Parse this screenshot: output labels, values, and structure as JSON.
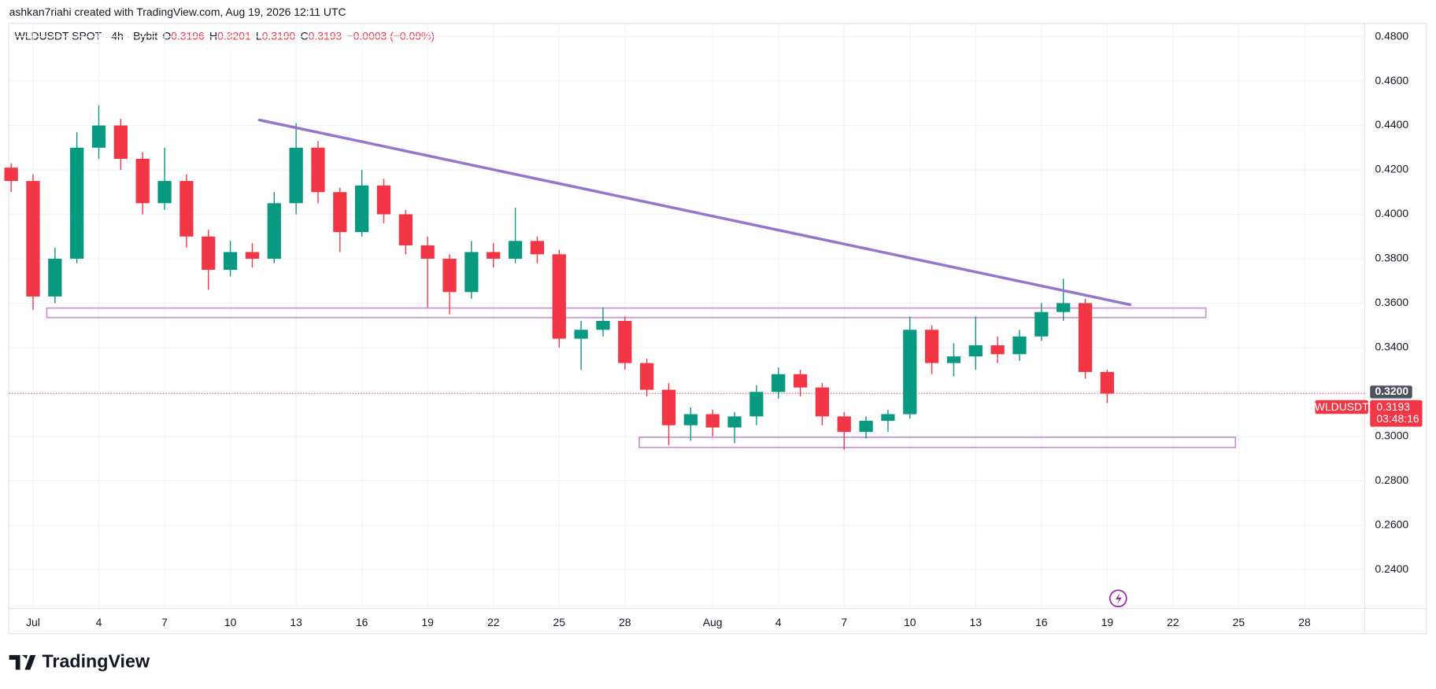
{
  "chart_data": {
    "type": "candlestick",
    "header": "ashkan7riahi created with TradingView.com, Aug 19, 2026 12:11 UTC",
    "legend": {
      "symbol": "WLDUSDT SPOT · 4h · Bybit",
      "o_label": "O",
      "o": "0.3196",
      "h_label": "H",
      "h": "0.3201",
      "l_label": "L",
      "l": "0.3190",
      "c_label": "C",
      "c": "0.3193",
      "change": "−0.0003 (−0.09%)"
    },
    "brand": "TradingView",
    "up_color": "#089981",
    "down_color": "#f23645",
    "x": [
      -1,
      0,
      1,
      2,
      3,
      4,
      5,
      6,
      7,
      8,
      9,
      10,
      11,
      12,
      13,
      14,
      15,
      16,
      17,
      18,
      19,
      20,
      21,
      22,
      23,
      24,
      25,
      26,
      27,
      28,
      29,
      30,
      31,
      32,
      33,
      34,
      35,
      36,
      37,
      38,
      39,
      40,
      41,
      42,
      43,
      44,
      45,
      46,
      47,
      48,
      49
    ],
    "open": [
      0.421,
      0.415,
      0.363,
      0.38,
      0.43,
      0.44,
      0.425,
      0.405,
      0.415,
      0.39,
      0.375,
      0.383,
      0.38,
      0.405,
      0.43,
      0.41,
      0.392,
      0.413,
      0.4,
      0.386,
      0.38,
      0.365,
      0.383,
      0.38,
      0.388,
      0.382,
      0.344,
      0.348,
      0.352,
      0.333,
      0.321,
      0.305,
      0.31,
      0.304,
      0.309,
      0.32,
      0.328,
      0.322,
      0.309,
      0.302,
      0.307,
      0.31,
      0.348,
      0.333,
      0.336,
      0.341,
      0.337,
      0.345,
      0.356,
      0.36,
      0.329
    ],
    "high": [
      0.423,
      0.418,
      0.385,
      0.437,
      0.449,
      0.443,
      0.428,
      0.43,
      0.418,
      0.393,
      0.388,
      0.387,
      0.41,
      0.441,
      0.433,
      0.412,
      0.42,
      0.416,
      0.402,
      0.39,
      0.382,
      0.388,
      0.387,
      0.403,
      0.39,
      0.384,
      0.352,
      0.358,
      0.354,
      0.335,
      0.324,
      0.313,
      0.312,
      0.311,
      0.323,
      0.331,
      0.33,
      0.324,
      0.311,
      0.309,
      0.312,
      0.354,
      0.35,
      0.342,
      0.354,
      0.345,
      0.348,
      0.36,
      0.371,
      0.362,
      0.33
    ],
    "low": [
      0.41,
      0.357,
      0.36,
      0.378,
      0.425,
      0.42,
      0.4,
      0.402,
      0.385,
      0.366,
      0.372,
      0.376,
      0.378,
      0.4,
      0.405,
      0.383,
      0.39,
      0.396,
      0.382,
      0.358,
      0.355,
      0.362,
      0.376,
      0.378,
      0.378,
      0.34,
      0.33,
      0.345,
      0.33,
      0.318,
      0.296,
      0.298,
      0.3,
      0.297,
      0.305,
      0.317,
      0.318,
      0.305,
      0.294,
      0.299,
      0.302,
      0.308,
      0.328,
      0.327,
      0.33,
      0.333,
      0.334,
      0.343,
      0.352,
      0.326,
      0.315
    ],
    "close": [
      0.415,
      0.363,
      0.38,
      0.43,
      0.44,
      0.425,
      0.405,
      0.415,
      0.39,
      0.375,
      0.383,
      0.38,
      0.405,
      0.43,
      0.41,
      0.392,
      0.413,
      0.4,
      0.386,
      0.38,
      0.365,
      0.383,
      0.38,
      0.388,
      0.382,
      0.344,
      0.348,
      0.352,
      0.333,
      0.321,
      0.305,
      0.31,
      0.304,
      0.309,
      0.32,
      0.328,
      0.322,
      0.309,
      0.302,
      0.307,
      0.31,
      0.348,
      0.333,
      0.336,
      0.341,
      0.337,
      0.345,
      0.356,
      0.36,
      0.329,
      0.3193
    ],
    "xlim": [
      -1.09,
      60.74
    ],
    "ylim": [
      0.2225,
      0.4862
    ],
    "xticks": [
      {
        "value": 0,
        "label": "Jul"
      },
      {
        "value": 3,
        "label": "4"
      },
      {
        "value": 6,
        "label": "7"
      },
      {
        "value": 9,
        "label": "10"
      },
      {
        "value": 12,
        "label": "13"
      },
      {
        "value": 15,
        "label": "16"
      },
      {
        "value": 18,
        "label": "19"
      },
      {
        "value": 21,
        "label": "22"
      },
      {
        "value": 24,
        "label": "25"
      },
      {
        "value": 27,
        "label": "28"
      },
      {
        "value": 31,
        "label": "Aug"
      },
      {
        "value": 34,
        "label": "4"
      },
      {
        "value": 37,
        "label": "7"
      },
      {
        "value": 40,
        "label": "10"
      },
      {
        "value": 43,
        "label": "13"
      },
      {
        "value": 46,
        "label": "16"
      },
      {
        "value": 49,
        "label": "19"
      },
      {
        "value": 52,
        "label": "22"
      },
      {
        "value": 55,
        "label": "25"
      },
      {
        "value": 58,
        "label": "28"
      }
    ],
    "yticks": [
      {
        "value": 0.48,
        "label": "0.4800"
      },
      {
        "value": 0.46,
        "label": "0.4600"
      },
      {
        "value": 0.44,
        "label": "0.4400"
      },
      {
        "value": 0.42,
        "label": "0.4200"
      },
      {
        "value": 0.4,
        "label": "0.4000"
      },
      {
        "value": 0.38,
        "label": "0.3800"
      },
      {
        "value": 0.36,
        "label": "0.3600"
      },
      {
        "value": 0.34,
        "label": "0.3400"
      },
      {
        "value": 0.3,
        "label": "0.3000"
      },
      {
        "value": 0.28,
        "label": "0.2800"
      },
      {
        "value": 0.26,
        "label": "0.2600"
      },
      {
        "value": 0.24,
        "label": "0.2400"
      }
    ],
    "grid": true,
    "marker_label": {
      "value": 0.32,
      "label": "0.3200"
    },
    "last_price": {
      "value": 0.3193,
      "label": "0.3193",
      "symbol": "WLDUSDT",
      "countdown": "03:48:16"
    },
    "trendline": {
      "x": [
        10.32,
        50.04
      ],
      "y": [
        0.4425,
        0.3593
      ],
      "color": "#9575cd"
    },
    "zones": [
      {
        "x": [
          0.63,
          53.5
        ],
        "y": [
          0.3535,
          0.3578
        ],
        "color": "#ce93d8"
      },
      {
        "x": [
          27.65,
          54.85
        ],
        "y": [
          0.295,
          0.2996
        ],
        "color": "#ce93d8"
      }
    ]
  }
}
